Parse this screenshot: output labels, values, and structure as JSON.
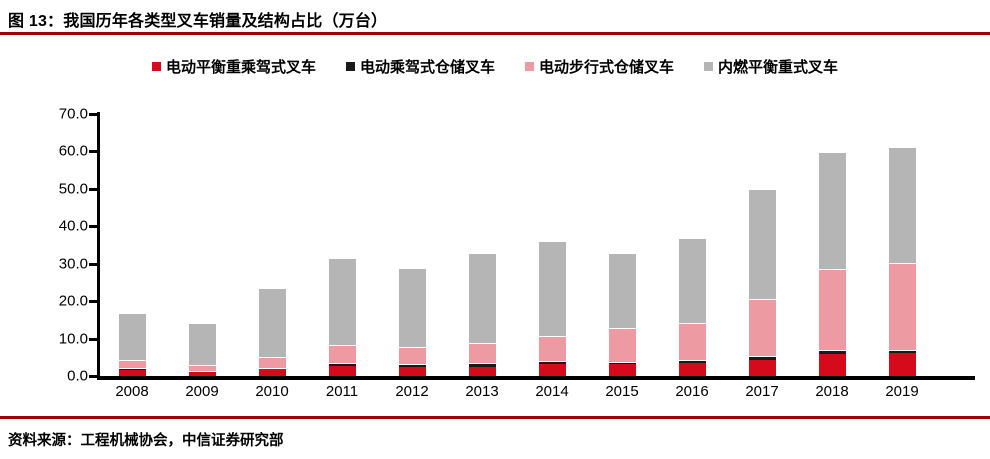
{
  "figure": {
    "title": "图 13：我国历年各类型叉车销量及结构占比（万台）",
    "source": "资料来源：工程机械协会，中信证券研究部"
  },
  "colors": {
    "accent_rule": "#a00000",
    "axis": "#000000",
    "background": "#ffffff"
  },
  "chart_data": {
    "type": "bar",
    "stacked": true,
    "title": "我国历年各类型叉车销量及结构占比（万台）",
    "unit": "万台",
    "xlabel": "",
    "ylabel": "",
    "ylim": [
      0,
      70
    ],
    "yticks": [
      "0.0",
      "10.0",
      "20.0",
      "30.0",
      "40.0",
      "50.0",
      "60.0",
      "70.0"
    ],
    "grid": false,
    "legend_position": "top",
    "categories": [
      "2008",
      "2009",
      "2010",
      "2011",
      "2012",
      "2013",
      "2014",
      "2015",
      "2016",
      "2017",
      "2018",
      "2019"
    ],
    "series": [
      {
        "name": "电动平衡重乘驾式叉车",
        "color": "#d50b1c",
        "values": [
          1.7,
          1.1,
          1.8,
          2.6,
          2.3,
          2.5,
          3.2,
          3.1,
          3.5,
          4.4,
          5.8,
          6.2
        ]
      },
      {
        "name": "电动乘驾式仓储叉车",
        "color": "#1a1a1a",
        "values": [
          0.1,
          0.1,
          0.2,
          0.5,
          0.6,
          0.6,
          0.5,
          0.5,
          0.6,
          0.8,
          1.0,
          0.6
        ]
      },
      {
        "name": "电动步行式仓储叉车",
        "color": "#ee9aa2",
        "values": [
          2.3,
          1.6,
          2.7,
          4.9,
          4.7,
          5.4,
          6.8,
          9.1,
          9.7,
          15.0,
          21.5,
          23.1
        ]
      },
      {
        "name": "内燃平衡重式叉车",
        "color": "#b5b5b5",
        "values": [
          12.5,
          11.1,
          18.5,
          23.2,
          20.9,
          24.2,
          25.2,
          19.8,
          22.9,
          29.5,
          31.4,
          30.9
        ]
      }
    ],
    "totals": [
      16.6,
      13.9,
      23.2,
      31.2,
      28.5,
      32.7,
      35.7,
      32.5,
      36.7,
      49.7,
      59.7,
      60.8
    ]
  }
}
